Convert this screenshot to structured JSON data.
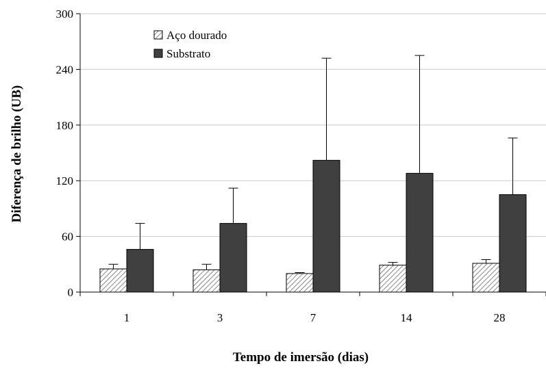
{
  "chart_data": {
    "type": "bar",
    "title": "",
    "xlabel": "Tempo de imersão (dias)",
    "ylabel": "Diferença de brilho (UB)",
    "categories": [
      "1",
      "3",
      "7",
      "14",
      "28"
    ],
    "ylim": [
      0,
      300
    ],
    "yticks": [
      0,
      60,
      120,
      180,
      240,
      300
    ],
    "grid": "horizontal",
    "legend_position": "top-left",
    "series": [
      {
        "name": "Aço dourado",
        "values": [
          25,
          24,
          20,
          29,
          31
        ],
        "error_plus": [
          5,
          6,
          1,
          3,
          4
        ],
        "fill": "hatched",
        "color": "#cccccc"
      },
      {
        "name": "Substrato",
        "values": [
          46,
          74,
          142,
          128,
          105
        ],
        "error_plus": [
          28,
          38,
          110,
          127,
          61
        ],
        "fill": "solid",
        "color": "#404040"
      }
    ]
  }
}
